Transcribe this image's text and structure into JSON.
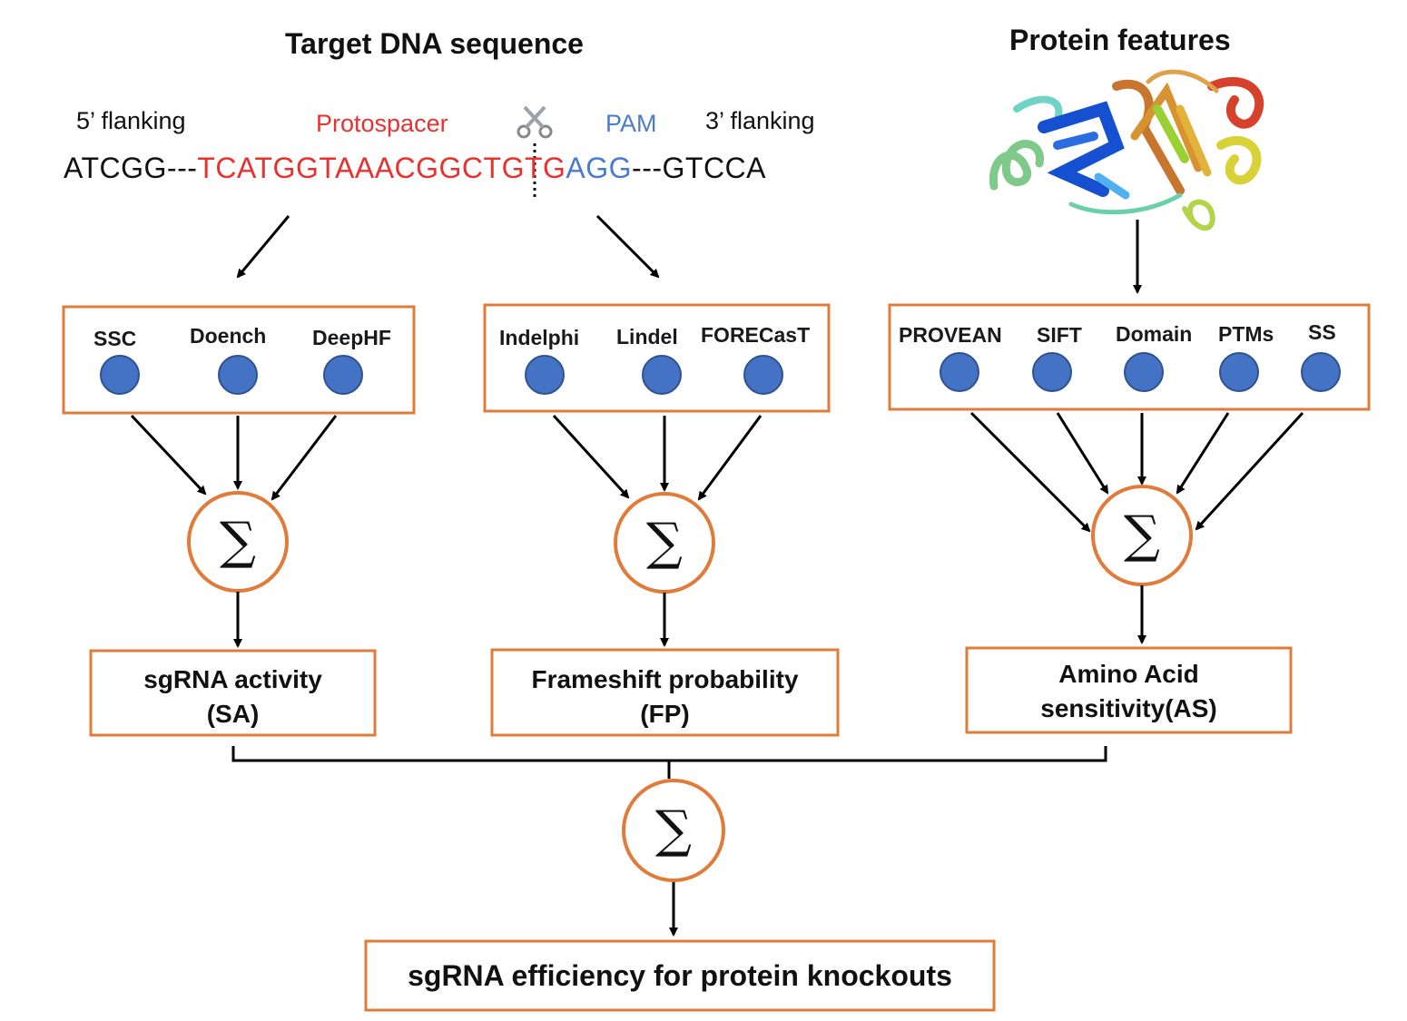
{
  "colors": {
    "box_border": "#e07b39",
    "node_fill": "#4472c4",
    "node_stroke": "#2f528f",
    "protospacer": "#e8322f",
    "pam": "#4a7bd0",
    "arrow": "#000000"
  },
  "titles": {
    "dna": "Target DNA sequence",
    "protein": "Protein features"
  },
  "sequence": {
    "flank5_label": "5’ flanking",
    "protospacer_label": "Protospacer",
    "pam_label": "PAM",
    "flank3_label": "3’ flanking",
    "flank5": "ATCGG---",
    "protospacer": "TCATGGTAAACGGCTGTG",
    "pam": "AGG",
    "flank3": "---GTCCA",
    "cut_icon": "scissors-icon"
  },
  "groups": [
    {
      "methods": [
        "SSC",
        "Doench",
        "DeepHF"
      ],
      "output_line1": "sgRNA activity",
      "output_line2": "(SA)"
    },
    {
      "methods": [
        "Indelphi",
        "Lindel",
        "FORECasT"
      ],
      "output_line1": "Frameshift probability",
      "output_line2": "(FP)"
    },
    {
      "methods": [
        "PROVEAN",
        "SIFT",
        "Domain",
        "PTMs",
        "SS"
      ],
      "output_line1": "Amino Acid",
      "output_line2": "sensitivity(AS)"
    }
  ],
  "sum_symbol": "∑",
  "final_output": "sgRNA efficiency for protein knockouts",
  "protein_icon": "protein-structure-icon"
}
